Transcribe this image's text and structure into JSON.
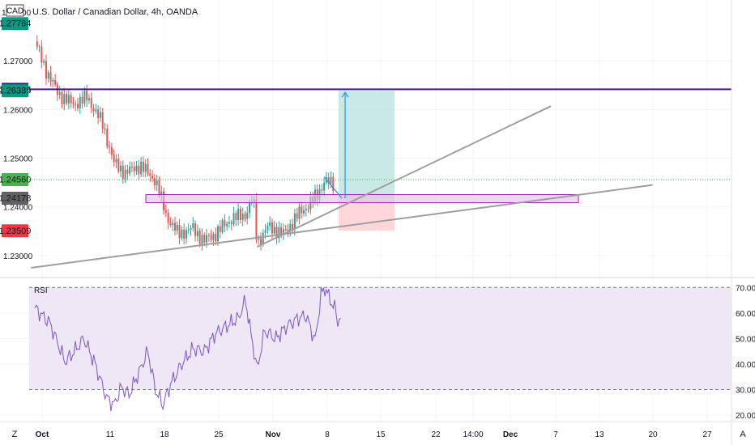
{
  "header": {
    "currency_badge": "CAD",
    "symbol_title": "U.S. Dollar / Canadian Dollar, 4h, OANDA",
    "partial_tick": "1.28000"
  },
  "colors": {
    "up": "#26a69a",
    "down": "#ef5350",
    "resistance": "#4a148c",
    "zone_fill": "#e1bee7",
    "zone_border": "#9c27b0",
    "target": "#b2dfdb",
    "stop": "#ffcdd2",
    "arrow": "#2196f3",
    "trend": "#9e9e9e",
    "rsi_line": "#7e57c2",
    "rsi_band": "#ede7f6"
  },
  "price_badges": [
    {
      "label": "1.27764",
      "value": 1.27764,
      "color": "#089981"
    },
    {
      "label": "1.26416",
      "value": 1.26416,
      "color": "#4a148c"
    },
    {
      "label": "1.26385",
      "value": 1.26385,
      "color": "#089981"
    },
    {
      "label": "1.24560",
      "value": 1.2456,
      "color": "#4caf50"
    },
    {
      "label": "1.24178",
      "value": 1.24178,
      "color": "#616161"
    },
    {
      "label": "1.23509",
      "value": 1.23509,
      "color": "#f23645"
    }
  ],
  "rsi_label": "RSI",
  "footer": {
    "left_icon": "Z",
    "right_icon": "A"
  },
  "chart_data": {
    "type": "candlestick",
    "title": "U.S. Dollar / Canadian Dollar, 4h, OANDA",
    "x_ticks": [
      "Oct",
      "11",
      "18",
      "25",
      "Nov",
      "8",
      "15",
      "22",
      "14:00",
      "Dec",
      "7",
      "13",
      "20",
      "27"
    ],
    "y_ticks": [
      "1.27000",
      "1.26000",
      "1.25000",
      "1.24000",
      "1.23000"
    ],
    "ylim": [
      1.2255,
      1.2825
    ],
    "price_path": [
      [
        0,
        1.274
      ],
      [
        1.5,
        1.268
      ],
      [
        3,
        1.2635
      ],
      [
        5,
        1.261
      ],
      [
        7,
        1.2625
      ],
      [
        9,
        1.257
      ],
      [
        10.5,
        1.249
      ],
      [
        12,
        1.247
      ],
      [
        14,
        1.2485
      ],
      [
        16,
        1.2455
      ],
      [
        17.5,
        1.238
      ],
      [
        19,
        1.2345
      ],
      [
        21,
        1.2355
      ],
      [
        22.5,
        1.233
      ],
      [
        24,
        1.2345
      ],
      [
        26,
        1.2375
      ],
      [
        28,
        1.2385
      ],
      [
        29,
        1.242
      ],
      [
        29.5,
        1.2325
      ],
      [
        31,
        1.236
      ],
      [
        33,
        1.2345
      ],
      [
        35,
        1.2385
      ],
      [
        36,
        1.24
      ],
      [
        37.5,
        1.2425
      ],
      [
        38.5,
        1.2455
      ],
      [
        39.6,
        1.2445
      ]
    ],
    "resistance_level": 1.26416,
    "demand_zone": [
      1.2412,
      1.2422
    ],
    "position": {
      "entry": 1.24178,
      "target": 1.26385,
      "stop": 1.23509
    },
    "trendlines": [
      {
        "from": [
          -0.5,
          1.2275
        ],
        "to": [
          82,
          1.2445
        ]
      },
      {
        "from": [
          29.5,
          1.2318
        ],
        "to": [
          68.5,
          1.2607
        ]
      }
    ],
    "rsi": {
      "levels": [
        70,
        30
      ],
      "y_ticks": [
        "70.00",
        "60.00",
        "50.00",
        "40.00",
        "30.00",
        "20.00"
      ],
      "ylim": [
        17.5,
        72
      ],
      "path": [
        [
          0,
          62
        ],
        [
          2,
          56
        ],
        [
          4,
          41
        ],
        [
          5,
          44
        ],
        [
          6.5,
          50
        ],
        [
          8,
          40
        ],
        [
          9.5,
          27
        ],
        [
          10.5,
          24
        ],
        [
          11.5,
          31
        ],
        [
          12.5,
          28
        ],
        [
          14,
          38
        ],
        [
          15,
          45
        ],
        [
          16,
          30
        ],
        [
          17,
          24
        ],
        [
          18,
          32
        ],
        [
          19.5,
          40
        ],
        [
          21,
          46
        ],
        [
          22.5,
          45
        ],
        [
          24,
          52
        ],
        [
          25.5,
          55
        ],
        [
          27,
          58
        ],
        [
          28,
          65
        ],
        [
          28.5,
          55
        ],
        [
          29.5,
          38
        ],
        [
          30.5,
          53
        ],
        [
          32,
          50
        ],
        [
          33.5,
          55
        ],
        [
          35,
          58
        ],
        [
          36,
          59
        ],
        [
          37.2,
          49
        ],
        [
          38,
          67
        ],
        [
          38.5,
          70
        ],
        [
          39.2,
          65
        ],
        [
          39.8,
          62
        ],
        [
          40.2,
          57
        ],
        [
          40.6,
          58
        ]
      ]
    }
  }
}
